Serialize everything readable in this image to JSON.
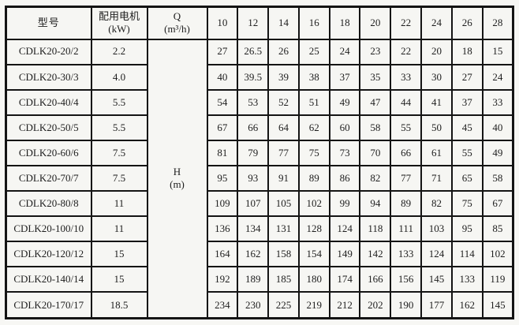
{
  "page": {
    "background": "#f7f7f4",
    "border_color": "#141414",
    "text_color": "#1e1e1e"
  },
  "table": {
    "header": {
      "model": "型号",
      "motor_line1": "配用电机",
      "motor_line2": "(kW)",
      "q_line1": "Q",
      "q_line2": "(m³/h)",
      "flow_columns": [
        "10",
        "12",
        "14",
        "16",
        "18",
        "20",
        "22",
        "24",
        "26",
        "28"
      ]
    },
    "h_column": {
      "line1": "H",
      "line2": "(m)"
    },
    "rows": [
      {
        "model": "CDLK20-20/2",
        "power": "2.2",
        "values": [
          "27",
          "26.5",
          "26",
          "25",
          "24",
          "23",
          "22",
          "20",
          "18",
          "15"
        ]
      },
      {
        "model": "CDLK20-30/3",
        "power": "4.0",
        "values": [
          "40",
          "39.5",
          "39",
          "38",
          "37",
          "35",
          "33",
          "30",
          "27",
          "24"
        ]
      },
      {
        "model": "CDLK20-40/4",
        "power": "5.5",
        "values": [
          "54",
          "53",
          "52",
          "51",
          "49",
          "47",
          "44",
          "41",
          "37",
          "33"
        ]
      },
      {
        "model": "CDLK20-50/5",
        "power": "5.5",
        "values": [
          "67",
          "66",
          "64",
          "62",
          "60",
          "58",
          "55",
          "50",
          "45",
          "40"
        ]
      },
      {
        "model": "CDLK20-60/6",
        "power": "7.5",
        "values": [
          "81",
          "79",
          "77",
          "75",
          "73",
          "70",
          "66",
          "61",
          "55",
          "49"
        ]
      },
      {
        "model": "CDLK20-70/7",
        "power": "7.5",
        "values": [
          "95",
          "93",
          "91",
          "89",
          "86",
          "82",
          "77",
          "71",
          "65",
          "58"
        ]
      },
      {
        "model": "CDLK20-80/8",
        "power": "11",
        "values": [
          "109",
          "107",
          "105",
          "102",
          "99",
          "94",
          "89",
          "82",
          "75",
          "67"
        ]
      },
      {
        "model": "CDLK20-100/10",
        "power": "11",
        "values": [
          "136",
          "134",
          "131",
          "128",
          "124",
          "118",
          "111",
          "103",
          "95",
          "85"
        ]
      },
      {
        "model": "CDLK20-120/12",
        "power": "15",
        "values": [
          "164",
          "162",
          "158",
          "154",
          "149",
          "142",
          "133",
          "124",
          "114",
          "102"
        ]
      },
      {
        "model": "CDLK20-140/14",
        "power": "15",
        "values": [
          "192",
          "189",
          "185",
          "180",
          "174",
          "166",
          "156",
          "145",
          "133",
          "119"
        ]
      },
      {
        "model": "CDLK20-170/17",
        "power": "18.5",
        "values": [
          "234",
          "230",
          "225",
          "219",
          "212",
          "202",
          "190",
          "177",
          "162",
          "145"
        ]
      }
    ]
  }
}
